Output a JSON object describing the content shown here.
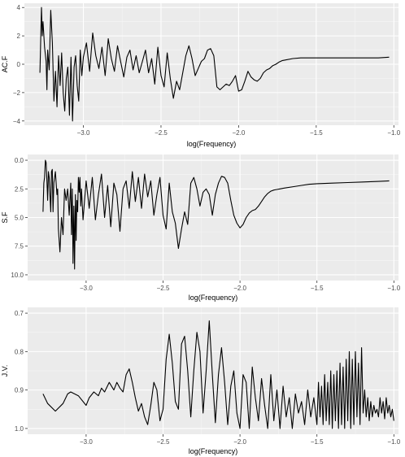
{
  "colors": {
    "panel": "#ebebeb",
    "grid_major": "#ffffff",
    "grid_minor": "#f5f5f5",
    "line": "#000000"
  },
  "chart_data": [
    {
      "type": "line",
      "xlabel": "log(Frequency)",
      "ylabel": "AC.F",
      "xlim": [
        -3.38,
        -0.97
      ],
      "ylim": [
        -4.3,
        4.3
      ],
      "y_reversed": false,
      "grid": true,
      "x_ticks": [
        {
          "v": -3.0,
          "label": "−3.0"
        },
        {
          "v": -2.5,
          "label": "−2.5"
        },
        {
          "v": -2.0,
          "label": "−2.0"
        },
        {
          "v": -1.5,
          "label": "−1.5"
        },
        {
          "v": -1.0,
          "label": "−1.0"
        }
      ],
      "y_ticks": [
        {
          "v": 4,
          "label": "4"
        },
        {
          "v": 2,
          "label": "2"
        },
        {
          "v": 0,
          "label": "0"
        },
        {
          "v": -2,
          "label": "−2"
        },
        {
          "v": -4,
          "label": "−4"
        }
      ],
      "x": [
        -3.28,
        -3.27,
        -3.265,
        -3.26,
        -3.25,
        -3.24,
        -3.235,
        -3.23,
        -3.22,
        -3.21,
        -3.2,
        -3.19,
        -3.18,
        -3.17,
        -3.16,
        -3.15,
        -3.14,
        -3.13,
        -3.12,
        -3.11,
        -3.1,
        -3.09,
        -3.08,
        -3.07,
        -3.06,
        -3.05,
        -3.04,
        -3.03,
        -3.02,
        -3.01,
        -3.0,
        -2.98,
        -2.96,
        -2.94,
        -2.92,
        -2.9,
        -2.88,
        -2.86,
        -2.84,
        -2.82,
        -2.8,
        -2.78,
        -2.76,
        -2.74,
        -2.72,
        -2.7,
        -2.68,
        -2.66,
        -2.64,
        -2.62,
        -2.6,
        -2.58,
        -2.56,
        -2.54,
        -2.52,
        -2.5,
        -2.48,
        -2.46,
        -2.44,
        -2.42,
        -2.4,
        -2.38,
        -2.36,
        -2.34,
        -2.32,
        -2.3,
        -2.28,
        -2.26,
        -2.24,
        -2.22,
        -2.2,
        -2.18,
        -2.16,
        -2.14,
        -2.12,
        -2.1,
        -2.08,
        -2.06,
        -2.04,
        -2.02,
        -2.0,
        -1.98,
        -1.96,
        -1.94,
        -1.92,
        -1.9,
        -1.88,
        -1.86,
        -1.84,
        -1.82,
        -1.8,
        -1.78,
        -1.76,
        -1.74,
        -1.72,
        -1.7,
        -1.65,
        -1.6,
        -1.55,
        -1.5,
        -1.4,
        -1.3,
        -1.2,
        -1.1,
        -1.03
      ],
      "y": [
        -0.6,
        4.0,
        2.0,
        3.0,
        1.2,
        0.2,
        -1.8,
        1.0,
        -0.4,
        3.8,
        1.5,
        -2.6,
        -0.5,
        -3.0,
        0.6,
        -1.5,
        0.8,
        -2.0,
        -3.3,
        -1.0,
        -0.2,
        -3.6,
        0.5,
        -4.0,
        -0.2,
        0.6,
        -1.5,
        -2.6,
        1.0,
        -0.8,
        0.5,
        1.5,
        -0.5,
        2.2,
        0.6,
        -0.3,
        1.2,
        -0.8,
        1.8,
        0.4,
        -0.5,
        1.3,
        0.2,
        -0.9,
        0.5,
        1.0,
        -0.4,
        0.6,
        -0.6,
        0.2,
        1.0,
        -0.6,
        0.4,
        -1.4,
        1.2,
        -0.8,
        -1.6,
        0.8,
        -1.0,
        -2.4,
        -1.2,
        -1.8,
        -0.6,
        0.6,
        1.3,
        0.4,
        -0.8,
        -0.3,
        0.2,
        0.4,
        1.0,
        1.1,
        0.6,
        -1.6,
        -1.8,
        -1.6,
        -1.4,
        -1.5,
        -1.2,
        -0.8,
        -1.9,
        -1.8,
        -1.2,
        -0.5,
        -0.9,
        -1.1,
        -1.2,
        -1.0,
        -0.6,
        -0.4,
        -0.3,
        -0.1,
        0.0,
        0.15,
        0.25,
        0.3,
        0.4,
        0.45,
        0.45,
        0.45,
        0.45,
        0.45,
        0.45,
        0.45,
        0.5
      ]
    },
    {
      "type": "line",
      "xlabel": "log(Frequency)",
      "ylabel": "S.F",
      "xlim": [
        -3.38,
        -0.97
      ],
      "ylim": [
        -0.5,
        10.5
      ],
      "y_reversed": true,
      "grid": true,
      "x_ticks": [
        {
          "v": -3.0,
          "label": "−3.0"
        },
        {
          "v": -2.5,
          "label": "−2.5"
        },
        {
          "v": -2.0,
          "label": "−2.0"
        },
        {
          "v": -1.5,
          "label": "−1.5"
        },
        {
          "v": -1.0,
          "label": "−1.0"
        }
      ],
      "y_ticks": [
        {
          "v": 0.0,
          "label": "0.0"
        },
        {
          "v": 2.5,
          "label": "2.5"
        },
        {
          "v": 5.0,
          "label": "5.0"
        },
        {
          "v": 7.5,
          "label": "7.5"
        },
        {
          "v": 10.0,
          "label": "10.0"
        }
      ],
      "x": [
        -3.28,
        -3.275,
        -3.27,
        -3.265,
        -3.26,
        -3.255,
        -3.25,
        -3.245,
        -3.24,
        -3.235,
        -3.23,
        -3.225,
        -3.22,
        -3.215,
        -3.21,
        -3.2,
        -3.19,
        -3.185,
        -3.18,
        -3.17,
        -3.16,
        -3.15,
        -3.14,
        -3.13,
        -3.12,
        -3.11,
        -3.1,
        -3.095,
        -3.09,
        -3.085,
        -3.08,
        -3.075,
        -3.07,
        -3.065,
        -3.06,
        -3.055,
        -3.05,
        -3.045,
        -3.04,
        -3.035,
        -3.03,
        -3.02,
        -3.0,
        -2.98,
        -2.96,
        -2.94,
        -2.92,
        -2.9,
        -2.88,
        -2.86,
        -2.84,
        -2.82,
        -2.8,
        -2.78,
        -2.76,
        -2.74,
        -2.72,
        -2.7,
        -2.68,
        -2.66,
        -2.64,
        -2.62,
        -2.6,
        -2.58,
        -2.56,
        -2.54,
        -2.52,
        -2.5,
        -2.48,
        -2.46,
        -2.44,
        -2.42,
        -2.4,
        -2.38,
        -2.36,
        -2.34,
        -2.32,
        -2.3,
        -2.28,
        -2.26,
        -2.24,
        -2.22,
        -2.2,
        -2.18,
        -2.16,
        -2.14,
        -2.12,
        -2.1,
        -2.08,
        -2.06,
        -2.04,
        -2.02,
        -2.0,
        -1.98,
        -1.96,
        -1.94,
        -1.92,
        -1.9,
        -1.88,
        -1.86,
        -1.84,
        -1.82,
        -1.8,
        -1.78,
        -1.76,
        -1.74,
        -1.72,
        -1.7,
        -1.65,
        -1.6,
        -1.55,
        -1.5,
        -1.4,
        -1.3,
        -1.2,
        -1.1,
        -1.03
      ],
      "y": [
        4.5,
        2.0,
        1.5,
        0.0,
        0.2,
        1.8,
        3.5,
        1.0,
        1.5,
        3.0,
        4.5,
        1.0,
        0.8,
        4.5,
        2.0,
        1.0,
        3.0,
        2.5,
        6.0,
        8.0,
        5.0,
        6.5,
        2.5,
        3.5,
        2.5,
        4.8,
        2.0,
        6.5,
        2.5,
        9.0,
        4.0,
        9.5,
        3.0,
        7.0,
        3.5,
        4.5,
        1.5,
        2.8,
        1.5,
        4.0,
        2.5,
        5.2,
        1.8,
        4.2,
        1.5,
        5.2,
        3.0,
        1.2,
        5.0,
        2.2,
        5.8,
        2.0,
        3.0,
        6.2,
        2.5,
        1.8,
        4.2,
        1.0,
        3.6,
        1.5,
        4.2,
        1.2,
        3.2,
        1.8,
        4.8,
        3.0,
        1.5,
        4.8,
        6.0,
        2.0,
        4.5,
        5.5,
        7.7,
        6.0,
        4.5,
        5.6,
        2.0,
        1.5,
        2.5,
        4.0,
        2.8,
        2.5,
        3.0,
        4.8,
        3.0,
        2.0,
        1.4,
        1.5,
        2.0,
        3.5,
        4.8,
        5.5,
        5.9,
        5.6,
        5.0,
        4.6,
        4.4,
        4.3,
        4.0,
        3.6,
        3.2,
        2.9,
        2.7,
        2.6,
        2.55,
        2.5,
        2.45,
        2.4,
        2.3,
        2.2,
        2.1,
        2.05,
        2.0,
        1.95,
        1.9,
        1.85,
        1.8
      ]
    },
    {
      "type": "line",
      "xlabel": "log(Frequency)",
      "ylabel": "J.V.",
      "xlim": [
        -3.38,
        -0.97
      ],
      "ylim": [
        0.685,
        1.015
      ],
      "y_reversed": true,
      "grid": true,
      "x_ticks": [
        {
          "v": -3.0,
          "label": "−3.0"
        },
        {
          "v": -2.5,
          "label": "−2.5"
        },
        {
          "v": -2.0,
          "label": "−2.0"
        },
        {
          "v": -1.5,
          "label": "−1.5"
        },
        {
          "v": -1.0,
          "label": "−1.0"
        }
      ],
      "y_ticks": [
        {
          "v": 0.7,
          "label": "0.7"
        },
        {
          "v": 0.8,
          "label": "0.8"
        },
        {
          "v": 0.9,
          "label": "0.9"
        },
        {
          "v": 1.0,
          "label": "1.0"
        }
      ],
      "x": [
        -3.28,
        -3.25,
        -3.2,
        -3.15,
        -3.12,
        -3.1,
        -3.05,
        -3.0,
        -2.98,
        -2.95,
        -2.92,
        -2.9,
        -2.88,
        -2.85,
        -2.82,
        -2.8,
        -2.78,
        -2.76,
        -2.74,
        -2.72,
        -2.7,
        -2.68,
        -2.66,
        -2.64,
        -2.62,
        -2.6,
        -2.58,
        -2.56,
        -2.54,
        -2.52,
        -2.5,
        -2.48,
        -2.46,
        -2.44,
        -2.42,
        -2.4,
        -2.38,
        -2.36,
        -2.34,
        -2.32,
        -2.3,
        -2.28,
        -2.26,
        -2.24,
        -2.22,
        -2.2,
        -2.18,
        -2.16,
        -2.14,
        -2.12,
        -2.1,
        -2.08,
        -2.06,
        -2.04,
        -2.02,
        -2.0,
        -1.98,
        -1.96,
        -1.94,
        -1.92,
        -1.9,
        -1.88,
        -1.86,
        -1.84,
        -1.82,
        -1.8,
        -1.78,
        -1.76,
        -1.74,
        -1.72,
        -1.7,
        -1.68,
        -1.66,
        -1.64,
        -1.62,
        -1.6,
        -1.58,
        -1.56,
        -1.54,
        -1.52,
        -1.5,
        -1.49,
        -1.48,
        -1.47,
        -1.46,
        -1.45,
        -1.44,
        -1.43,
        -1.42,
        -1.41,
        -1.4,
        -1.39,
        -1.38,
        -1.37,
        -1.36,
        -1.35,
        -1.34,
        -1.33,
        -1.32,
        -1.31,
        -1.3,
        -1.29,
        -1.28,
        -1.27,
        -1.26,
        -1.25,
        -1.24,
        -1.23,
        -1.22,
        -1.21,
        -1.2,
        -1.19,
        -1.18,
        -1.17,
        -1.16,
        -1.15,
        -1.14,
        -1.13,
        -1.12,
        -1.11,
        -1.1,
        -1.09,
        -1.08,
        -1.07,
        -1.06,
        -1.05,
        -1.04,
        -1.03,
        -1.02,
        -1.01,
        -1.0
      ],
      "y": [
        0.91,
        0.935,
        0.955,
        0.935,
        0.91,
        0.905,
        0.915,
        0.94,
        0.92,
        0.905,
        0.915,
        0.895,
        0.905,
        0.88,
        0.9,
        0.88,
        0.895,
        0.905,
        0.86,
        0.845,
        0.88,
        0.92,
        0.955,
        0.935,
        0.97,
        0.99,
        0.94,
        0.88,
        0.9,
        0.98,
        0.95,
        0.82,
        0.755,
        0.83,
        0.93,
        0.95,
        0.78,
        0.76,
        0.85,
        0.97,
        0.85,
        0.75,
        0.8,
        0.96,
        0.85,
        0.72,
        0.86,
        0.985,
        0.86,
        0.79,
        0.88,
        0.99,
        0.89,
        0.85,
        0.96,
        1.0,
        0.86,
        0.88,
        1.0,
        0.84,
        0.92,
        0.98,
        0.87,
        0.94,
        1.0,
        0.86,
        0.98,
        0.9,
        1.0,
        0.89,
        0.97,
        0.92,
        1.0,
        0.91,
        0.96,
        0.93,
        0.99,
        0.9,
        0.97,
        0.92,
        0.99,
        0.88,
        0.97,
        0.89,
        0.99,
        0.86,
        0.98,
        0.88,
        0.99,
        0.85,
        1.0,
        0.86,
        0.98,
        0.85,
        1.0,
        0.83,
        0.99,
        0.84,
        1.0,
        0.82,
        0.98,
        0.8,
        1.0,
        0.82,
        0.99,
        0.8,
        0.97,
        0.83,
        0.99,
        0.79,
        0.96,
        0.9,
        0.97,
        0.92,
        0.98,
        0.93,
        0.97,
        0.94,
        0.96,
        0.95,
        0.97,
        0.92,
        0.96,
        0.93,
        0.975,
        0.92,
        0.96,
        0.94,
        0.97,
        0.95,
        0.98
      ]
    }
  ]
}
